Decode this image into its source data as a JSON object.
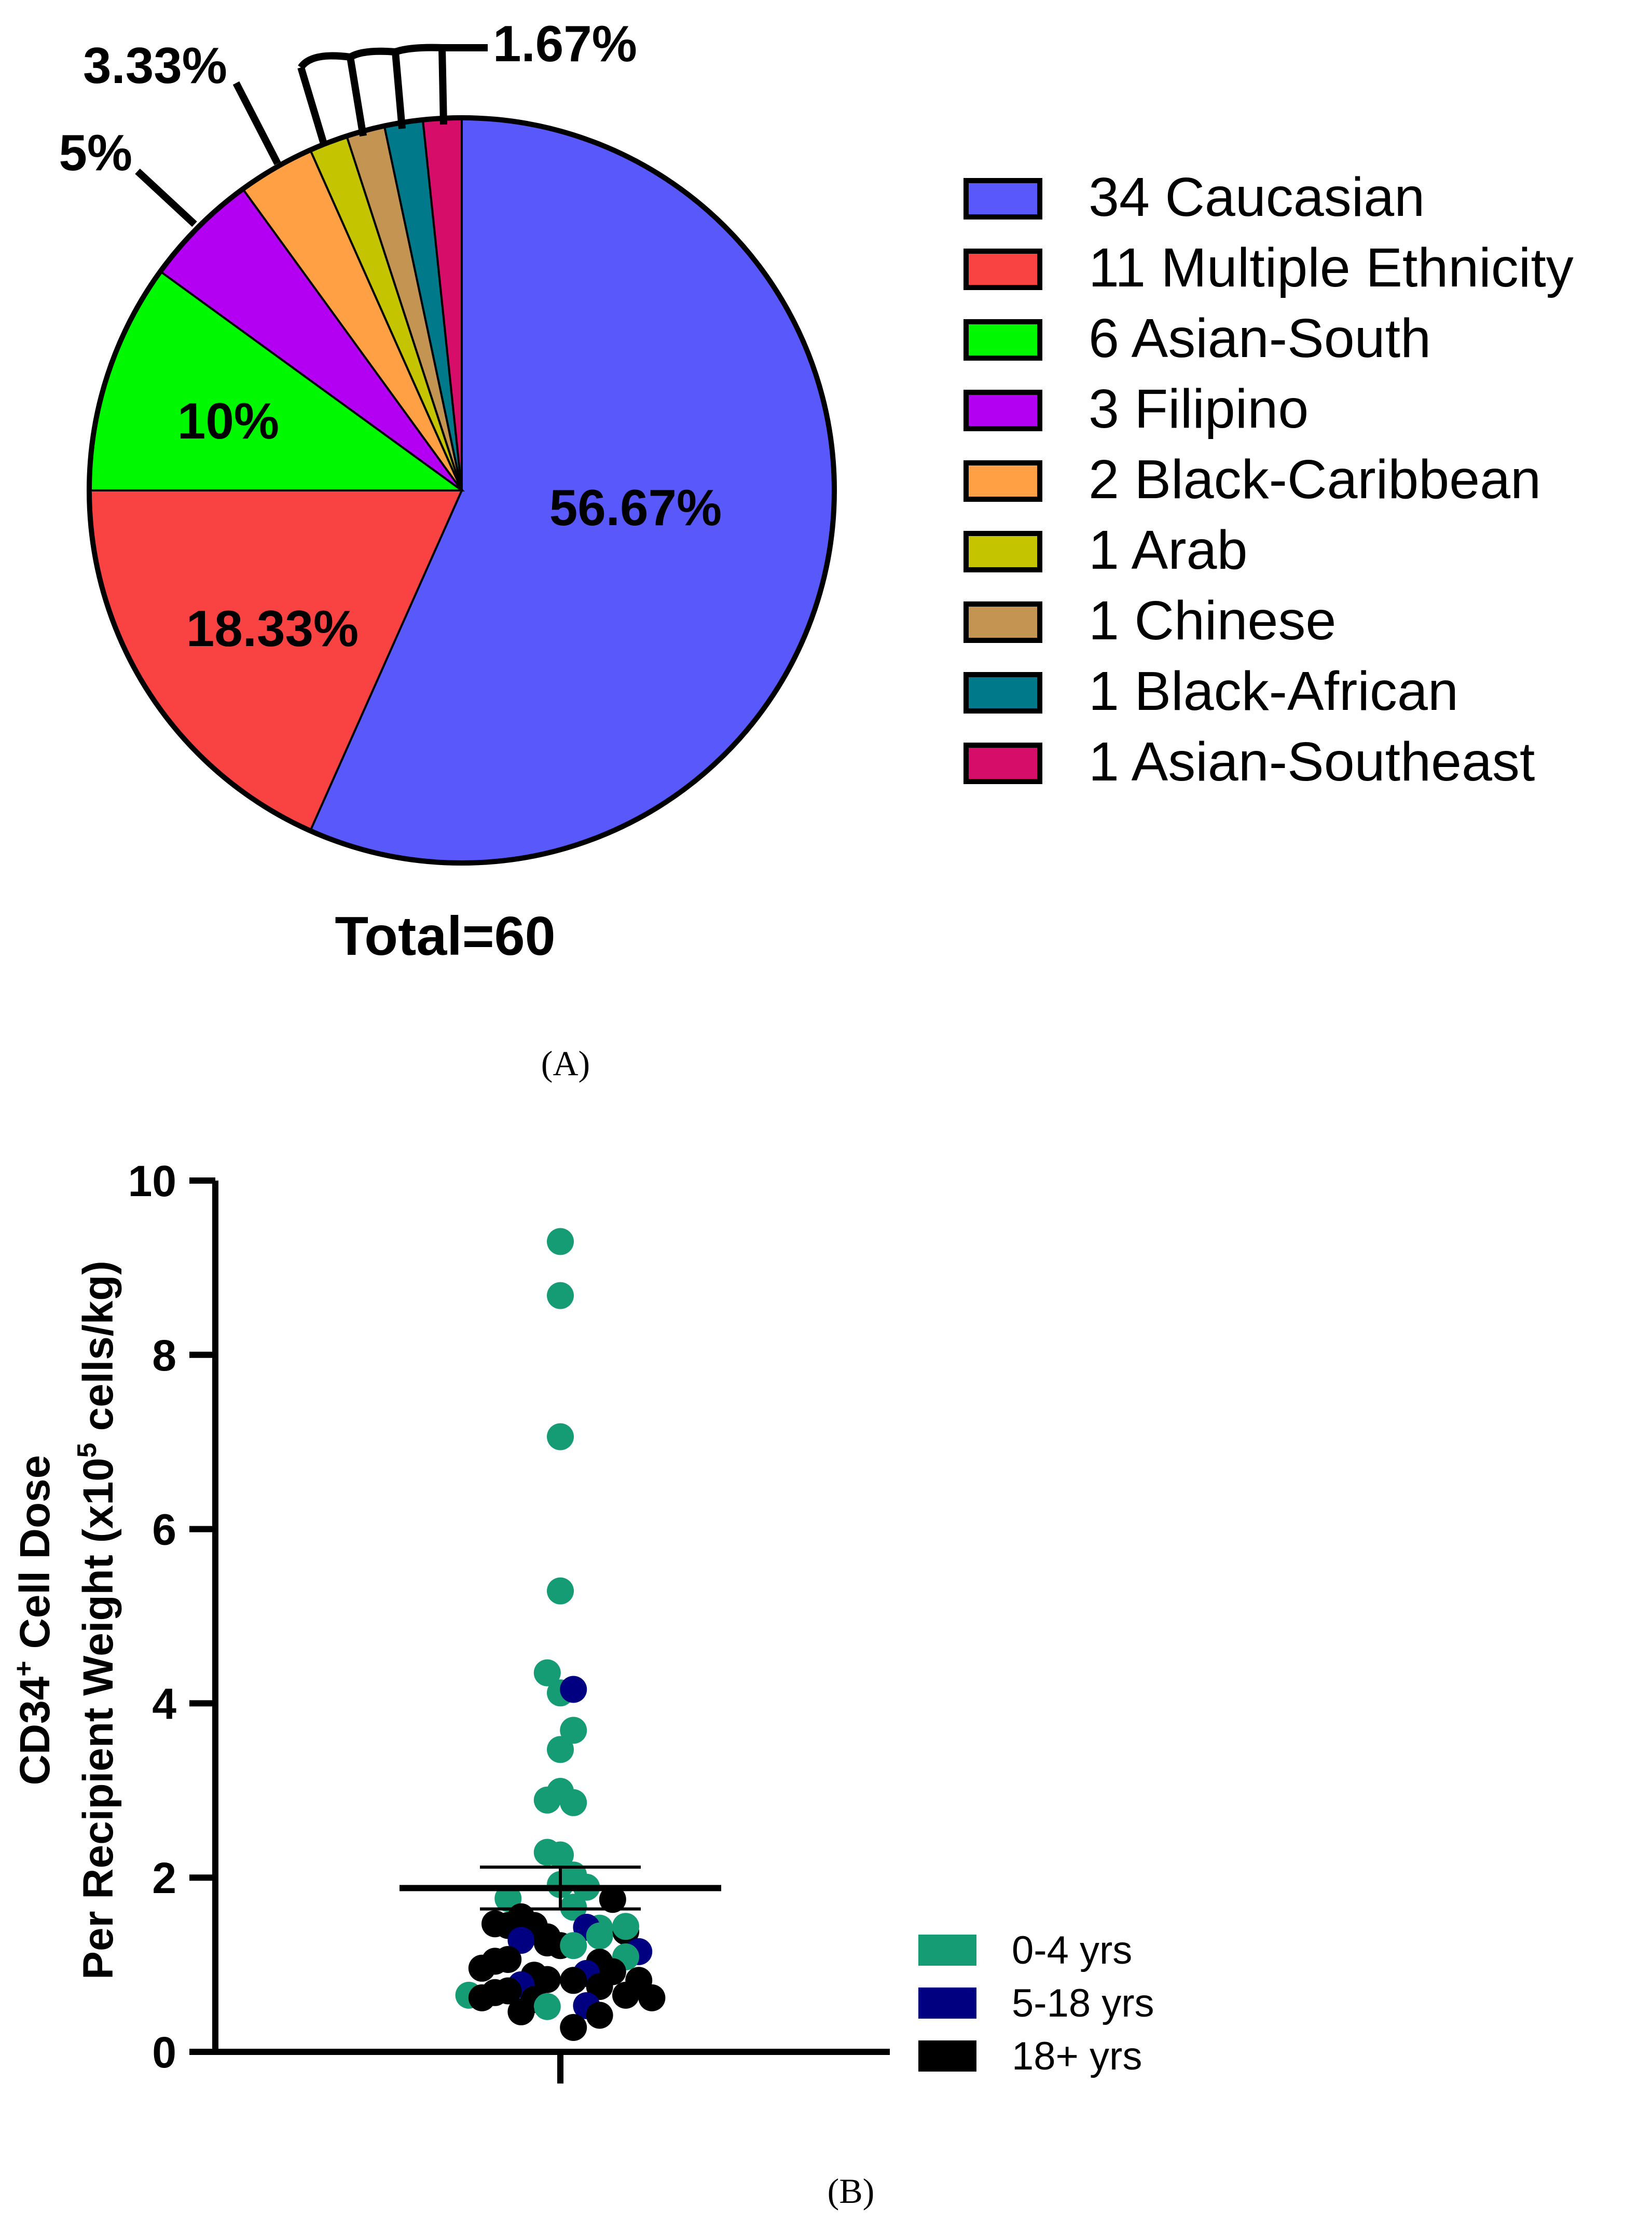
{
  "panel_a_caption": "(A)",
  "panel_b_caption": "(B)",
  "chart_data": [
    {
      "type": "pie",
      "panel": "A",
      "total_label": "Total=60",
      "slices": [
        {
          "label": "Caucasian",
          "count": 34,
          "percent_label": "56.67%",
          "color": "#5858FB"
        },
        {
          "label": "Multiple Ethnicity",
          "count": 11,
          "percent_label": "18.33%",
          "color": "#F94343"
        },
        {
          "label": "Asian-South",
          "count": 6,
          "percent_label": "10%",
          "color": "#00F900"
        },
        {
          "label": "Filipino",
          "count": 3,
          "percent_label": "5%",
          "color": "#B300F2"
        },
        {
          "label": "Black-Caribbean",
          "count": 2,
          "percent_label": "3.33%",
          "color": "#FFA044"
        },
        {
          "label": "Arab",
          "count": 1,
          "percent_label": "",
          "color": "#C4C400"
        },
        {
          "label": "Chinese",
          "count": 1,
          "percent_label": "",
          "color": "#C49452"
        },
        {
          "label": "Black-African",
          "count": 1,
          "percent_label": "",
          "color": "#00798A"
        },
        {
          "label": "Asian-Southeast",
          "count": 1,
          "percent_label": "",
          "color": "#D60E6A"
        }
      ],
      "small_slices_label": "1.67%",
      "legend": [
        {
          "text": "34 Caucasian",
          "color": "#5858FB"
        },
        {
          "text": "11 Multiple Ethnicity",
          "color": "#F94343"
        },
        {
          "text": "6 Asian-South",
          "color": "#00F900"
        },
        {
          "text": "3 Filipino",
          "color": "#B300F2"
        },
        {
          "text": "2 Black-Caribbean",
          "color": "#FFA044"
        },
        {
          "text": "1 Arab",
          "color": "#C4C400"
        },
        {
          "text": "1 Chinese",
          "color": "#C49452"
        },
        {
          "text": "1 Black-African",
          "color": "#00798A"
        },
        {
          "text": "1 Asian-Southeast",
          "color": "#D60E6A"
        }
      ]
    },
    {
      "type": "scatter",
      "panel": "B",
      "ylabel_line1": "CD34",
      "ylabel_line1_sup": "+",
      "ylabel_line1_rest": " Cell Dose",
      "ylabel_line2": "Per Recipient Weight (x10",
      "ylabel_line2_sup": "5",
      "ylabel_line2_rest": " cells/kg)",
      "ylim": [
        0,
        10
      ],
      "yticks": [
        "0",
        "2",
        "4",
        "6",
        "8",
        "10"
      ],
      "mean": 1.88,
      "sem_upper": 2.12,
      "sem_lower": 1.64,
      "legend": [
        {
          "text": "0-4 yrs",
          "color": "#169C74"
        },
        {
          "text": "5-18 yrs",
          "color": "#000080"
        },
        {
          "text": "18+ yrs",
          "color": "#000000"
        }
      ],
      "points": [
        {
          "g": 0,
          "y": 9.3,
          "o": 0
        },
        {
          "g": 0,
          "y": 8.68,
          "o": 0
        },
        {
          "g": 0,
          "y": 7.06,
          "o": 0
        },
        {
          "g": 0,
          "y": 5.29,
          "o": 0
        },
        {
          "g": 0,
          "y": 4.35,
          "o": -0.6
        },
        {
          "g": 0,
          "y": 4.12,
          "o": 0
        },
        {
          "g": 1,
          "y": 4.16,
          "o": 0.6
        },
        {
          "g": 0,
          "y": 3.69,
          "o": 0.6
        },
        {
          "g": 0,
          "y": 3.47,
          "o": 0
        },
        {
          "g": 0,
          "y": 2.99,
          "o": 0
        },
        {
          "g": 0,
          "y": 2.89,
          "o": -0.6
        },
        {
          "g": 0,
          "y": 2.86,
          "o": 0.6
        },
        {
          "g": 0,
          "y": 2.29,
          "o": -0.6
        },
        {
          "g": 0,
          "y": 2.26,
          "o": 0
        },
        {
          "g": 0,
          "y": 2.03,
          "o": 0.6
        },
        {
          "g": 0,
          "y": 1.92,
          "o": 0
        },
        {
          "g": 0,
          "y": 1.89,
          "o": 1.2
        },
        {
          "g": 0,
          "y": 1.76,
          "o": -2.4
        },
        {
          "g": 0,
          "y": 1.66,
          "o": 0.6
        },
        {
          "g": 2,
          "y": 1.75,
          "o": 2.4
        },
        {
          "g": 2,
          "y": 1.55,
          "o": -1.8
        },
        {
          "g": 2,
          "y": 1.47,
          "o": -3.0
        },
        {
          "g": 2,
          "y": 1.45,
          "o": -1.2
        },
        {
          "g": 2,
          "y": 1.45,
          "o": -2.4
        },
        {
          "g": 2,
          "y": 1.38,
          "o": 3.0
        },
        {
          "g": 0,
          "y": 1.44,
          "o": 3.0
        },
        {
          "g": 0,
          "y": 1.42,
          "o": 1.8
        },
        {
          "g": 1,
          "y": 1.43,
          "o": 1.2
        },
        {
          "g": 0,
          "y": 1.33,
          "o": 1.8
        },
        {
          "g": 1,
          "y": 1.28,
          "o": -1.8
        },
        {
          "g": 2,
          "y": 1.32,
          "o": -0.6
        },
        {
          "g": 2,
          "y": 1.25,
          "o": -0.6
        },
        {
          "g": 2,
          "y": 1.22,
          "o": 0.0
        },
        {
          "g": 0,
          "y": 1.22,
          "o": 0.6
        },
        {
          "g": 1,
          "y": 1.15,
          "o": 3.6
        },
        {
          "g": 0,
          "y": 1.09,
          "o": 3.0
        },
        {
          "g": 2,
          "y": 1.06,
          "o": -2.4
        },
        {
          "g": 2,
          "y": 1.04,
          "o": -3.0
        },
        {
          "g": 2,
          "y": 1.03,
          "o": 1.8
        },
        {
          "g": 2,
          "y": 0.96,
          "o": -3.6
        },
        {
          "g": 2,
          "y": 0.92,
          "o": 2.4
        },
        {
          "g": 1,
          "y": 0.9,
          "o": 1.2
        },
        {
          "g": 2,
          "y": 0.88,
          "o": -1.2
        },
        {
          "g": 2,
          "y": 0.83,
          "o": -0.6
        },
        {
          "g": 2,
          "y": 0.82,
          "o": 0.6
        },
        {
          "g": 2,
          "y": 0.82,
          "o": 3.6
        },
        {
          "g": 1,
          "y": 0.77,
          "o": -1.8
        },
        {
          "g": 2,
          "y": 0.75,
          "o": 1.8
        },
        {
          "g": 2,
          "y": 0.7,
          "o": -2.4
        },
        {
          "g": 2,
          "y": 0.68,
          "o": -3.0
        },
        {
          "g": 0,
          "y": 0.65,
          "o": -4.2
        },
        {
          "g": 2,
          "y": 0.65,
          "o": 3.0
        },
        {
          "g": 2,
          "y": 0.62,
          "o": -3.6
        },
        {
          "g": 2,
          "y": 0.62,
          "o": 4.2
        },
        {
          "g": 2,
          "y": 0.6,
          "o": -1.2
        },
        {
          "g": 0,
          "y": 0.52,
          "o": -0.6
        },
        {
          "g": 1,
          "y": 0.53,
          "o": 1.2
        },
        {
          "g": 2,
          "y": 0.46,
          "o": -1.8
        },
        {
          "g": 2,
          "y": 0.42,
          "o": 1.8
        },
        {
          "g": 2,
          "y": 0.28,
          "o": 0.6
        }
      ]
    }
  ]
}
